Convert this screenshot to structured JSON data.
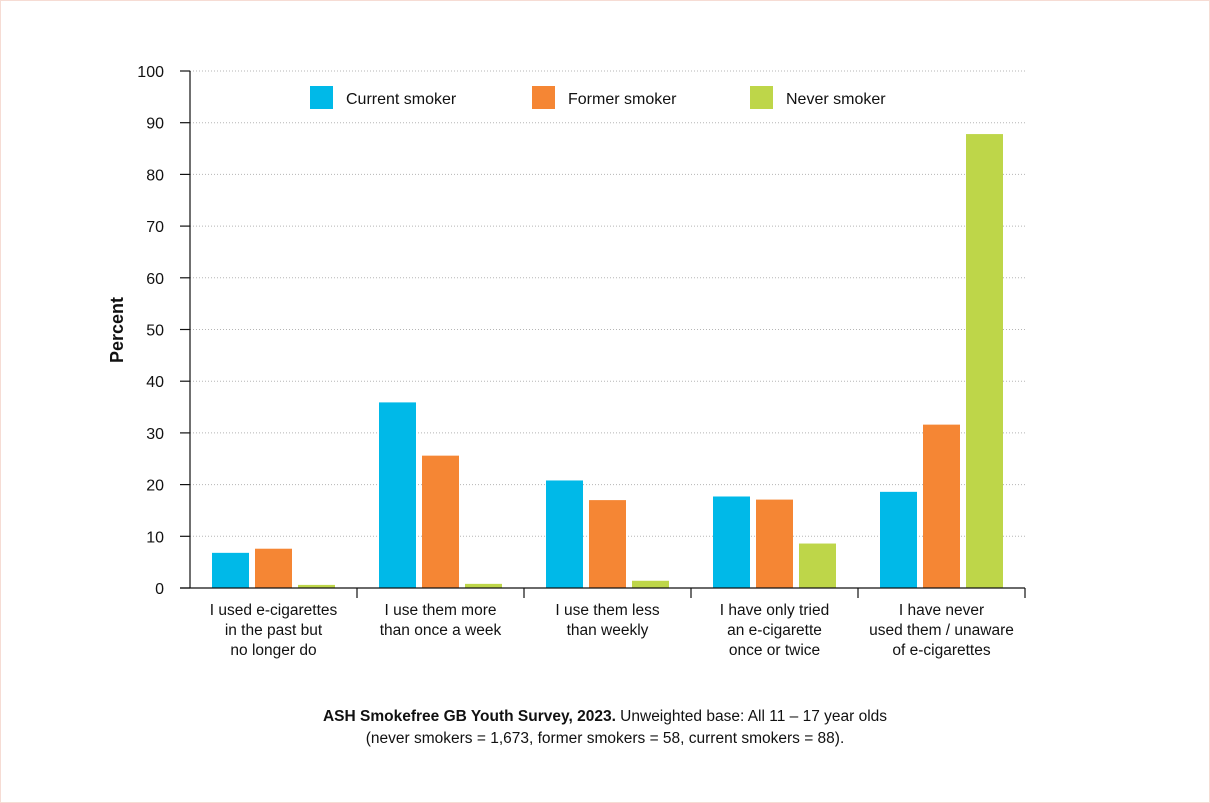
{
  "chart_data": {
    "type": "bar",
    "ylabel": "Percent",
    "ylim": [
      0,
      100
    ],
    "yticks": [
      0,
      10,
      20,
      30,
      40,
      50,
      60,
      70,
      80,
      90,
      100
    ],
    "grid": true,
    "legend_position": "top",
    "categories": [
      [
        "I used e-cigarettes",
        "in the past but",
        "no longer do"
      ],
      [
        "I use them more",
        "than once a week"
      ],
      [
        "I use them less",
        "than weekly"
      ],
      [
        "I have only tried",
        "an e-cigarette",
        "once or twice"
      ],
      [
        "I have never",
        "used them / unaware",
        "of e-cigarettes"
      ]
    ],
    "series": [
      {
        "name": "Current smoker",
        "color": "#00b9e8",
        "values": [
          6.8,
          35.9,
          20.8,
          17.7,
          18.6
        ]
      },
      {
        "name": "Former smoker",
        "color": "#f58634",
        "values": [
          7.6,
          25.6,
          17.0,
          17.1,
          31.6
        ]
      },
      {
        "name": "Never smoker",
        "color": "#bed649",
        "values": [
          0.6,
          0.8,
          1.4,
          8.6,
          87.8
        ]
      }
    ]
  },
  "caption": {
    "source": "ASH Smokefree GB Youth Survey, 2023.",
    "line1_rest": " Unweighted base: All 11 – 17 year olds",
    "line2": "(never smokers = 1,673, former smokers = 58, current smokers = 88)."
  }
}
